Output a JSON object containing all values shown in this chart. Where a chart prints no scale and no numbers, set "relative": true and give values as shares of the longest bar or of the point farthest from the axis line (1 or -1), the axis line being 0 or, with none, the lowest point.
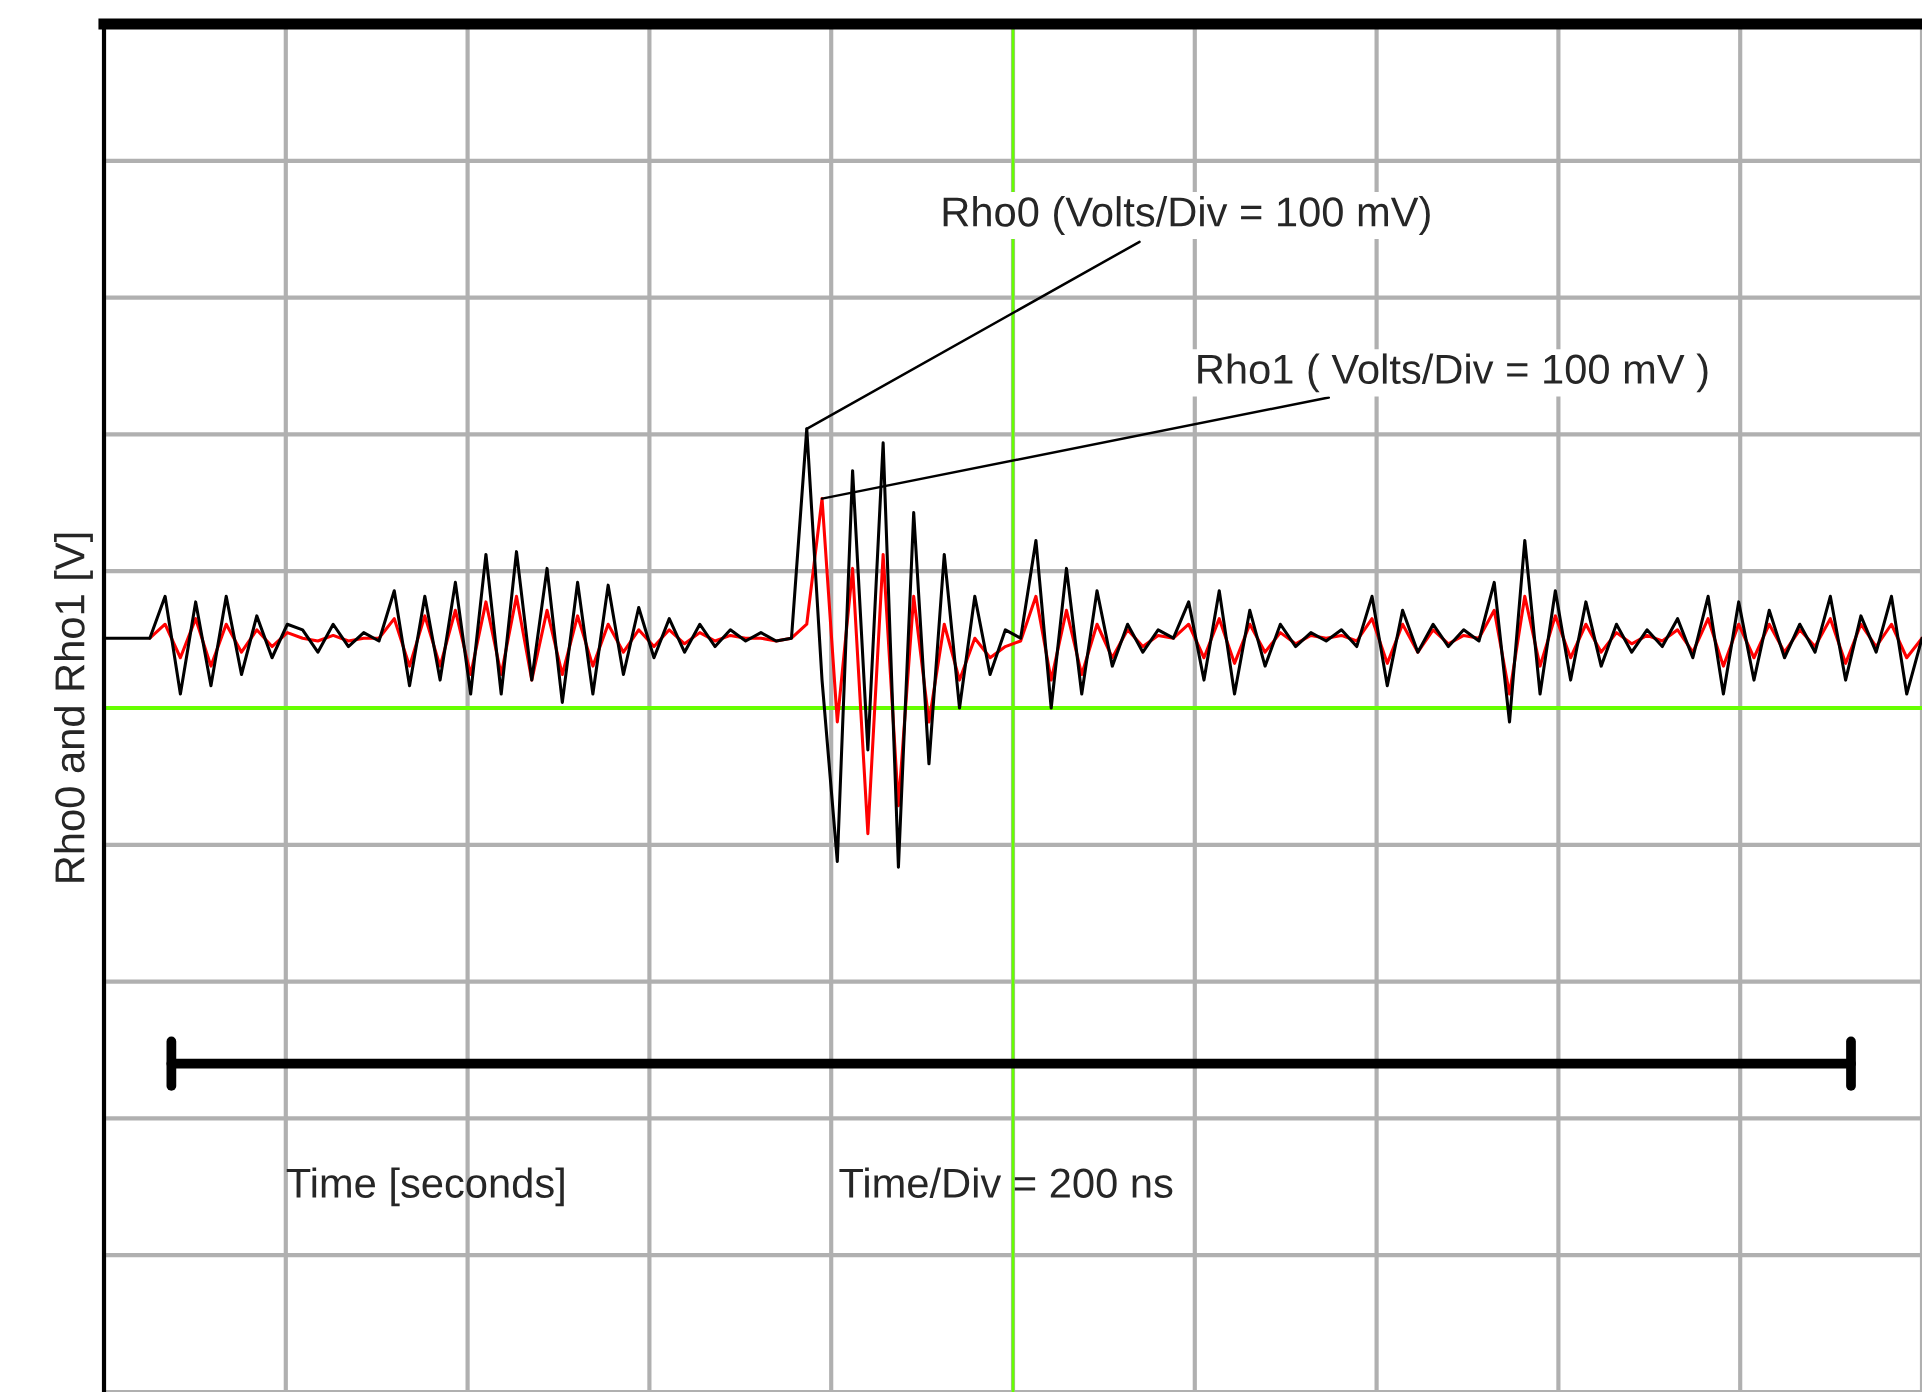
{
  "chart_data": {
    "type": "line",
    "relative": true,
    "ylabel": "Rho0 and Rho1 [V]",
    "grid": true,
    "legend": false,
    "categories": [
      null,
      null,
      null,
      null,
      null,
      null,
      null,
      null,
      null,
      null,
      null,
      null,
      null,
      null,
      null,
      null,
      null,
      null,
      null,
      null,
      null,
      null,
      null,
      null,
      null,
      null,
      null,
      null,
      null,
      null,
      null,
      null,
      null,
      null,
      null,
      null,
      null,
      null,
      null,
      null,
      null,
      null,
      null,
      null,
      null,
      null,
      null,
      null,
      null,
      null,
      null,
      null,
      null,
      null,
      null,
      null,
      null,
      null,
      null,
      null,
      null,
      null,
      null,
      null,
      null,
      null,
      null,
      null,
      null,
      null,
      null,
      null,
      null,
      null,
      null,
      null,
      null,
      null,
      null,
      null,
      null,
      null,
      null,
      null,
      null,
      null,
      null,
      null,
      null,
      null,
      null,
      null,
      null,
      null,
      null,
      null,
      null,
      null,
      null,
      null,
      null,
      null,
      null,
      null,
      null,
      null,
      null,
      null,
      null,
      null,
      null,
      null,
      null,
      null,
      null,
      null,
      null,
      null,
      null,
      null
    ],
    "series": [
      {
        "name": "Rho0 (Volts/Div = 100 mV)",
        "color": "#000000",
        "values": [
          0.25,
          0.25,
          0.25,
          0.25,
          0.4,
          0.05,
          0.38,
          0.08,
          0.4,
          0.12,
          0.33,
          0.18,
          0.3,
          0.28,
          0.2,
          0.3,
          0.22,
          0.27,
          0.24,
          0.42,
          0.08,
          0.4,
          0.1,
          0.45,
          0.05,
          0.55,
          0.05,
          0.56,
          0.1,
          0.5,
          0.02,
          0.45,
          0.05,
          0.44,
          0.12,
          0.36,
          0.18,
          0.32,
          0.2,
          0.3,
          0.22,
          0.28,
          0.24,
          0.27,
          0.24,
          0.25,
          1.0,
          0.1,
          -0.55,
          0.85,
          -0.15,
          0.95,
          -0.57,
          0.7,
          -0.2,
          0.55,
          0.0,
          0.4,
          0.12,
          0.28,
          0.25,
          0.6,
          0.0,
          0.5,
          0.05,
          0.42,
          0.15,
          0.3,
          0.2,
          0.28,
          0.25,
          0.38,
          0.1,
          0.42,
          0.05,
          0.35,
          0.15,
          0.3,
          0.22,
          0.27,
          0.24,
          0.28,
          0.22,
          0.4,
          0.08,
          0.35,
          0.2,
          0.3,
          0.22,
          0.28,
          0.24,
          0.45,
          -0.05,
          0.6,
          0.05,
          0.42,
          0.1,
          0.38,
          0.15,
          0.3,
          0.2,
          0.28,
          0.22,
          0.32,
          0.18,
          0.4,
          0.05,
          0.38,
          0.1,
          0.35,
          0.18,
          0.3,
          0.2,
          0.4,
          0.1,
          0.33,
          0.2,
          0.4,
          0.05,
          0.25
        ]
      },
      {
        "name": "Rho1 ( Volts/Div = 100 mV )",
        "color": "#ff0000",
        "values": [
          null,
          null,
          null,
          0.25,
          0.3,
          0.18,
          0.32,
          0.15,
          0.3,
          0.2,
          0.28,
          0.22,
          0.27,
          0.25,
          0.24,
          0.26,
          0.24,
          0.25,
          0.25,
          0.32,
          0.15,
          0.33,
          0.15,
          0.35,
          0.12,
          0.38,
          0.12,
          0.4,
          0.1,
          0.35,
          0.12,
          0.33,
          0.15,
          0.3,
          0.2,
          0.28,
          0.22,
          0.28,
          0.23,
          0.27,
          0.24,
          0.26,
          0.25,
          0.25,
          0.24,
          0.25,
          0.3,
          0.75,
          -0.05,
          0.5,
          -0.45,
          0.55,
          -0.35,
          0.4,
          -0.05,
          0.3,
          0.1,
          0.25,
          0.18,
          0.22,
          0.24,
          0.4,
          0.1,
          0.35,
          0.12,
          0.3,
          0.18,
          0.28,
          0.22,
          0.26,
          0.25,
          0.3,
          0.18,
          0.32,
          0.16,
          0.3,
          0.2,
          0.27,
          0.23,
          0.26,
          0.25,
          0.26,
          0.24,
          0.32,
          0.16,
          0.3,
          0.2,
          0.28,
          0.23,
          0.26,
          0.25,
          0.35,
          0.05,
          0.4,
          0.15,
          0.33,
          0.18,
          0.3,
          0.2,
          0.27,
          0.23,
          0.26,
          0.24,
          0.28,
          0.2,
          0.32,
          0.15,
          0.3,
          0.18,
          0.3,
          0.2,
          0.28,
          0.22,
          0.32,
          0.16,
          0.3,
          0.22,
          0.3,
          0.18,
          0.25
        ]
      }
    ],
    "ref_lines": [
      {
        "axis": "y",
        "value": 0,
        "color": "#66ff00"
      }
    ],
    "annotations": [
      "Time [seconds]",
      "Time/Div = 200 ns"
    ]
  }
}
